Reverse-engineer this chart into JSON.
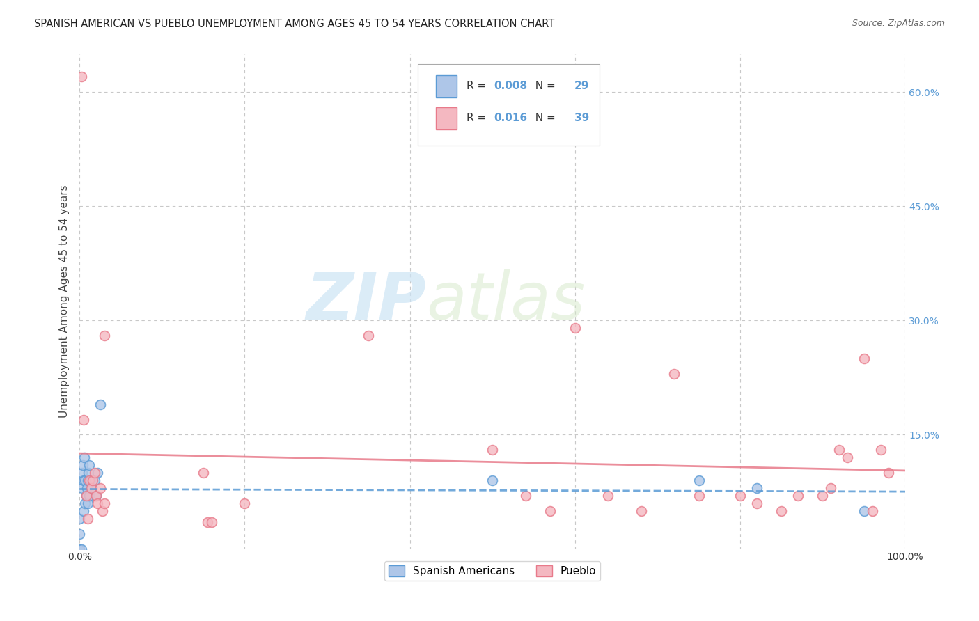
{
  "title": "SPANISH AMERICAN VS PUEBLO UNEMPLOYMENT AMONG AGES 45 TO 54 YEARS CORRELATION CHART",
  "source": "Source: ZipAtlas.com",
  "ylabel": "Unemployment Among Ages 45 to 54 years",
  "xlim": [
    0.0,
    1.0
  ],
  "ylim": [
    0.0,
    0.65
  ],
  "xticks": [
    0.0,
    0.2,
    0.4,
    0.6,
    0.8,
    1.0
  ],
  "yticks": [
    0.0,
    0.15,
    0.3,
    0.45,
    0.6
  ],
  "background_color": "#ffffff",
  "grid_color": "#c8c8c8",
  "spanish_americans": {
    "label": "Spanish Americans",
    "R": 0.008,
    "N": 29,
    "color_fill": "#aec6e8",
    "color_edge": "#5b9bd5",
    "trendline_color": "#5b9bd5",
    "trendline_style": "--",
    "x": [
      0.0,
      0.0,
      0.0,
      0.002,
      0.003,
      0.003,
      0.004,
      0.005,
      0.005,
      0.006,
      0.007,
      0.007,
      0.008,
      0.009,
      0.01,
      0.01,
      0.011,
      0.012,
      0.012,
      0.013,
      0.015,
      0.018,
      0.02,
      0.022,
      0.025,
      0.5,
      0.75,
      0.82,
      0.95
    ],
    "y": [
      0.0,
      0.02,
      0.04,
      0.0,
      0.08,
      0.1,
      0.11,
      0.05,
      0.09,
      0.12,
      0.06,
      0.09,
      0.07,
      0.08,
      0.06,
      0.09,
      0.1,
      0.07,
      0.11,
      0.09,
      0.08,
      0.09,
      0.07,
      0.1,
      0.19,
      0.09,
      0.09,
      0.08,
      0.05
    ]
  },
  "pueblo": {
    "label": "Pueblo",
    "R": 0.016,
    "N": 39,
    "color_fill": "#f4b8c1",
    "color_edge": "#e87a8a",
    "trendline_color": "#e87a8a",
    "trendline_style": "-",
    "x": [
      0.002,
      0.005,
      0.008,
      0.01,
      0.012,
      0.014,
      0.016,
      0.018,
      0.02,
      0.022,
      0.025,
      0.028,
      0.03,
      0.15,
      0.155,
      0.16,
      0.2,
      0.35,
      0.5,
      0.54,
      0.57,
      0.6,
      0.64,
      0.68,
      0.72,
      0.75,
      0.8,
      0.82,
      0.85,
      0.87,
      0.9,
      0.91,
      0.92,
      0.93,
      0.95,
      0.96,
      0.97,
      0.98,
      0.03
    ],
    "y": [
      0.62,
      0.17,
      0.07,
      0.04,
      0.09,
      0.08,
      0.09,
      0.1,
      0.07,
      0.06,
      0.08,
      0.05,
      0.28,
      0.1,
      0.035,
      0.035,
      0.06,
      0.28,
      0.13,
      0.07,
      0.05,
      0.29,
      0.07,
      0.05,
      0.23,
      0.07,
      0.07,
      0.06,
      0.05,
      0.07,
      0.07,
      0.08,
      0.13,
      0.12,
      0.25,
      0.05,
      0.13,
      0.1,
      0.06
    ]
  },
  "watermark_zip": "ZIP",
  "watermark_atlas": "atlas",
  "marker_size": 100
}
